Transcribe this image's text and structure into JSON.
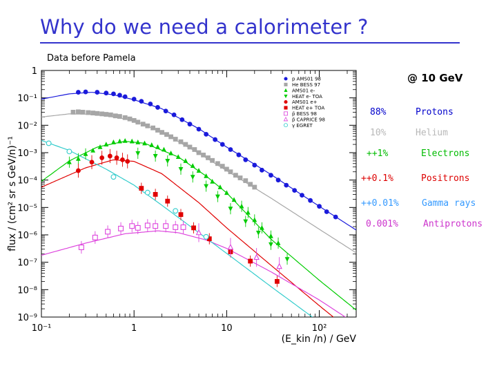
{
  "slide": {
    "title": "Why do we need a calorimeter ?",
    "subtitle": "Data before Pamela",
    "energy_label": "@ 10 GeV"
  },
  "fractions": [
    {
      "value": "88%",
      "label": "Protons",
      "color": "#0000cc"
    },
    {
      "value": "10%",
      "label": "Helium",
      "color": "#b8b8b8"
    },
    {
      "value": "++1%",
      "label": "Electrons",
      "color": "#00bb00"
    },
    {
      "value": "++0.1%",
      "label": "Positrons",
      "color": "#dd0000"
    },
    {
      "value": "++0.01%",
      "label": "Gamma rays",
      "color": "#3399ff"
    },
    {
      "value": "0.001%",
      "label": "Antiprotons",
      "color": "#cc33cc"
    }
  ],
  "chart_data": {
    "type": "scatter",
    "xscale": "log",
    "yscale": "log",
    "xlim": [
      0.1,
      250
    ],
    "ylim": [
      1e-09,
      1
    ],
    "xlabel": "(E_kin /n) / GeV",
    "ylabel": "flux / (cm² sr s GeV/n)⁻¹",
    "xticks": [
      "10⁻¹",
      "1",
      "10",
      "10²"
    ],
    "yticks": [
      "10⁻⁹",
      "10⁻⁸",
      "10⁻⁷",
      "10⁻⁶",
      "10⁻⁵",
      "10⁻⁴",
      "10⁻³",
      "10⁻²",
      "10⁻¹",
      "1"
    ],
    "legend_position": "top-right",
    "series": [
      {
        "name": "p AMS01 98",
        "color": "#1a1adb",
        "marker": "circle",
        "x": [
          0.25,
          0.3,
          0.4,
          0.5,
          0.6,
          0.7,
          0.8,
          1,
          1.2,
          1.5,
          1.8,
          2.2,
          2.7,
          3.3,
          4,
          5,
          6,
          7.5,
          9,
          11,
          13.5,
          16,
          20,
          24,
          30,
          36,
          44,
          54,
          65,
          80,
          100,
          120,
          150
        ],
        "y": [
          0.16,
          0.165,
          0.16,
          0.15,
          0.14,
          0.125,
          0.11,
          0.09,
          0.075,
          0.06,
          0.045,
          0.033,
          0.024,
          0.016,
          0.011,
          0.0072,
          0.0047,
          0.003,
          0.002,
          0.0013,
          0.00083,
          0.00055,
          0.00035,
          0.00023,
          0.00015,
          0.0001,
          6.5e-05,
          4.2e-05,
          2.8e-05,
          1.8e-05,
          1.1e-05,
          7e-06,
          4.5e-06
        ]
      },
      {
        "name": "He BESS 97",
        "color": "#a6a6a6",
        "marker": "square",
        "x": [
          0.22,
          0.25,
          0.28,
          0.32,
          0.36,
          0.4,
          0.45,
          0.5,
          0.56,
          0.63,
          0.7,
          0.8,
          0.9,
          1,
          1.1,
          1.25,
          1.4,
          1.6,
          1.8,
          2,
          2.25,
          2.5,
          2.8,
          3.2,
          3.6,
          4,
          4.5,
          5,
          5.6,
          6.3,
          7,
          8,
          9,
          10,
          11,
          12.5,
          14,
          16,
          18,
          20
        ],
        "y": [
          0.03,
          0.031,
          0.03,
          0.029,
          0.028,
          0.027,
          0.026,
          0.025,
          0.024,
          0.022,
          0.021,
          0.019,
          0.017,
          0.015,
          0.013,
          0.011,
          0.0095,
          0.008,
          0.0066,
          0.0055,
          0.0046,
          0.0038,
          0.0031,
          0.0025,
          0.002,
          0.0016,
          0.0013,
          0.001,
          0.00082,
          0.00065,
          0.00052,
          0.0004,
          0.00032,
          0.00025,
          0.0002,
          0.00015,
          0.00012,
          9.5e-05,
          7e-05,
          5.5e-05
        ]
      },
      {
        "name": "AMS01 e-",
        "color": "#00cc00",
        "marker": "triangle-up",
        "x": [
          0.2,
          0.25,
          0.3,
          0.36,
          0.43,
          0.5,
          0.6,
          0.7,
          0.8,
          0.95,
          1.1,
          1.3,
          1.55,
          1.8,
          2.1,
          2.5,
          3,
          3.6,
          4.3,
          5,
          6,
          7,
          8.5,
          10,
          12,
          14.5,
          17,
          20,
          24,
          30,
          36
        ],
        "y": [
          0.00045,
          0.0006,
          0.0009,
          0.0012,
          0.0016,
          0.002,
          0.0024,
          0.0026,
          0.0027,
          0.0026,
          0.0024,
          0.0022,
          0.0019,
          0.0016,
          0.0013,
          0.00095,
          0.0007,
          0.0005,
          0.00033,
          0.00022,
          0.00014,
          8.8e-05,
          5.5e-05,
          3.4e-05,
          1.9e-05,
          1.1e-05,
          6.5e-06,
          3.5e-06,
          1.8e-06,
          9e-07,
          5e-07
        ]
      },
      {
        "name": "HEAT e- TOA",
        "color": "#00cc00",
        "marker": "triangle-down",
        "x": [
          1.1,
          1.7,
          2.3,
          3.2,
          4.3,
          6,
          8,
          11,
          16,
          22,
          30,
          45
        ],
        "y": [
          0.00095,
          0.00075,
          0.0005,
          0.00025,
          0.00013,
          6e-05,
          2.5e-05,
          9e-06,
          3.1e-06,
          1.2e-06,
          4.5e-07,
          1.3e-07
        ]
      },
      {
        "name": "AMS01 e+",
        "color": "#e00000",
        "marker": "circle",
        "x": [
          0.25,
          0.35,
          0.45,
          0.55,
          0.65,
          0.75,
          0.85
        ],
        "y": [
          0.00022,
          0.00045,
          0.00065,
          0.00075,
          0.00065,
          0.00055,
          0.00048
        ]
      },
      {
        "name": "HEAT e+ TOA",
        "color": "#e00000",
        "marker": "square",
        "x": [
          1.2,
          1.7,
          2.3,
          3.2,
          4.4,
          6.5,
          11,
          18,
          35
        ],
        "y": [
          5e-05,
          3e-05,
          1.7e-05,
          5.5e-06,
          1.8e-06,
          7.2e-07,
          2.4e-07,
          1.1e-07,
          2e-08
        ]
      },
      {
        "name": "p̄ BESS 98",
        "color": "#dd44dd",
        "marker": "open-square",
        "x": [
          0.27,
          0.38,
          0.52,
          0.72,
          0.95,
          1.1,
          1.4,
          1.7,
          2.2,
          2.8,
          3.4
        ],
        "y": [
          3.5e-07,
          8e-07,
          1.3e-06,
          1.7e-06,
          2.1e-06,
          1.8e-06,
          2.2e-06,
          2.1e-06,
          2.1e-06,
          1.9e-06,
          1.9e-06
        ]
      },
      {
        "name": "p̄ CAPRICE 98",
        "color": "#dd44dd",
        "marker": "open-triangle",
        "x": [
          5,
          11,
          21,
          37
        ],
        "y": [
          1.2e-06,
          3.5e-07,
          1.5e-07,
          7e-08
        ]
      },
      {
        "name": "γ EGRET",
        "color": "#33cccc",
        "marker": "open-circle",
        "x": [
          0.12,
          0.2,
          0.6,
          1.4,
          2.8,
          6
        ],
        "y": [
          0.0022,
          0.0011,
          0.00013,
          3.5e-05,
          7.5e-06,
          8.5e-07
        ]
      }
    ]
  }
}
